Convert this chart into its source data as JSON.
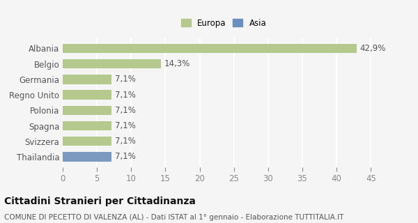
{
  "categories": [
    "Albania",
    "Belgio",
    "Germania",
    "Regno Unito",
    "Polonia",
    "Spagna",
    "Svizzera",
    "Thailandia"
  ],
  "values": [
    42.9,
    14.3,
    7.1,
    7.1,
    7.1,
    7.1,
    7.1,
    7.1
  ],
  "labels": [
    "42,9%",
    "14,3%",
    "7,1%",
    "7,1%",
    "7,1%",
    "7,1%",
    "7,1%",
    "7,1%"
  ],
  "colors": [
    "#b5c98e",
    "#b5c98e",
    "#b5c98e",
    "#b5c98e",
    "#b5c98e",
    "#b5c98e",
    "#b5c98e",
    "#7a9abf"
  ],
  "legend_items": [
    {
      "label": "Europa",
      "color": "#b5c98e"
    },
    {
      "label": "Asia",
      "color": "#6a8fbf"
    }
  ],
  "xlim": [
    0,
    47
  ],
  "xticks": [
    0,
    5,
    10,
    15,
    20,
    25,
    30,
    35,
    40,
    45
  ],
  "title": "Cittadini Stranieri per Cittadinanza",
  "subtitle": "COMUNE DI PECETTO DI VALENZA (AL) - Dati ISTAT al 1° gennaio - Elaborazione TUTTITALIA.IT",
  "background_color": "#f5f5f5",
  "grid_color": "#ffffff",
  "bar_height": 0.6,
  "label_fontsize": 8.5,
  "tick_fontsize": 8.5,
  "title_fontsize": 10,
  "subtitle_fontsize": 7.5
}
